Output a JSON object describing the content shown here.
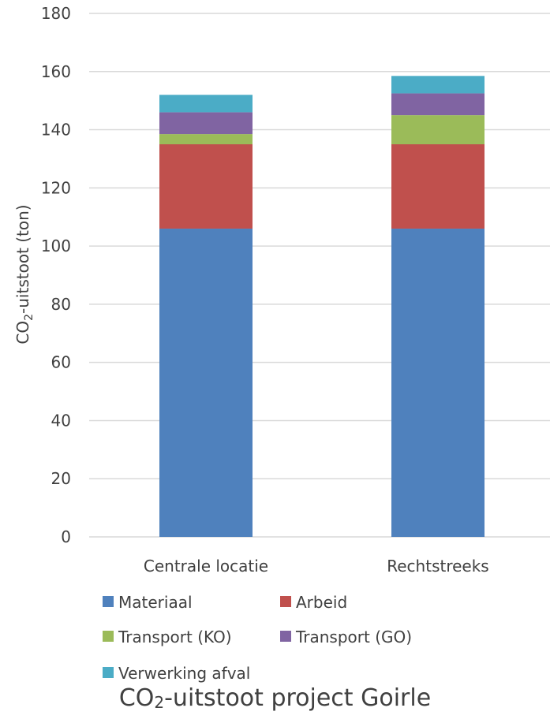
{
  "chart_data": {
    "type": "stacked-bar",
    "title_main": "CO",
    "title_sub": "2",
    "title_rest": "-uitstoot project Goirle",
    "ylabel_main": "CO",
    "ylabel_sub": "2",
    "ylabel_rest": "-uitstoot (ton)",
    "categories": [
      "Centrale locatie",
      "Rechtstreeks"
    ],
    "ylim": [
      0,
      180
    ],
    "yticks": [
      "0",
      "20",
      "40",
      "60",
      "80",
      "100",
      "120",
      "140",
      "160",
      "180"
    ],
    "grid": true,
    "legend_position": "bottom",
    "series": [
      {
        "name": "Materiaal",
        "color": "#4F81BD",
        "values": [
          106,
          106
        ]
      },
      {
        "name": "Arbeid",
        "color": "#C0504D",
        "values": [
          29,
          29
        ]
      },
      {
        "name": "Transport (KO)",
        "color": "#9BBB59",
        "values": [
          3.5,
          10
        ]
      },
      {
        "name": "Transport (GO)",
        "color": "#8064A2",
        "values": [
          7.5,
          7.5
        ]
      },
      {
        "name": "Verwerking afval",
        "color": "#4BACC6",
        "values": [
          6,
          6
        ]
      }
    ]
  }
}
